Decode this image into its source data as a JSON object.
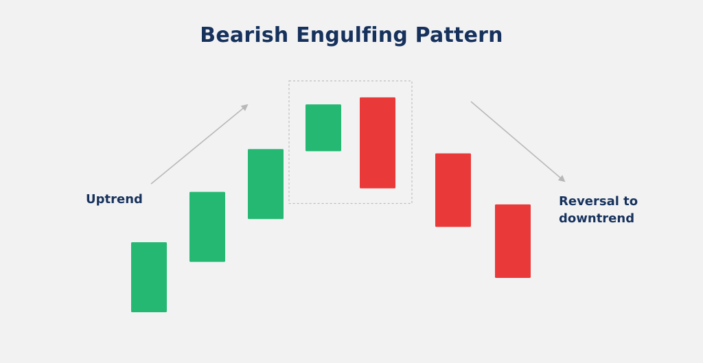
{
  "title": "Bearish Engulfing Pattern",
  "labels": {
    "uptrend": "Uptrend",
    "reversal_line1": "Reversal to",
    "reversal_line2": "downtrend"
  },
  "colors": {
    "bullish": "#25b873",
    "bearish": "#e93939",
    "text": "#16325c",
    "arrow": "#b8b8b8",
    "highlight_border": "#bdbdbd",
    "background": "#f2f2f3"
  },
  "candles": [
    {
      "id": "candle-1",
      "direction": "bullish",
      "open": 0.0,
      "close": 1.0
    },
    {
      "id": "candle-2",
      "direction": "bullish",
      "open": 0.72,
      "close": 1.72
    },
    {
      "id": "candle-3",
      "direction": "bullish",
      "open": 1.33,
      "close": 2.33
    },
    {
      "id": "candle-4",
      "direction": "bullish",
      "open": 2.3,
      "close": 2.97
    },
    {
      "id": "candle-5",
      "direction": "bearish",
      "open": 3.07,
      "close": 1.77
    },
    {
      "id": "candle-6",
      "direction": "bearish",
      "open": 2.27,
      "close": 1.22
    },
    {
      "id": "candle-7",
      "direction": "bearish",
      "open": 1.54,
      "close": 0.49
    }
  ],
  "highlight": {
    "candles": [
      "candle-4",
      "candle-5"
    ],
    "style": "dashed"
  },
  "arrows": [
    {
      "id": "uptrend-arrow",
      "direction": "up"
    },
    {
      "id": "downtrend-arrow",
      "direction": "down"
    }
  ]
}
